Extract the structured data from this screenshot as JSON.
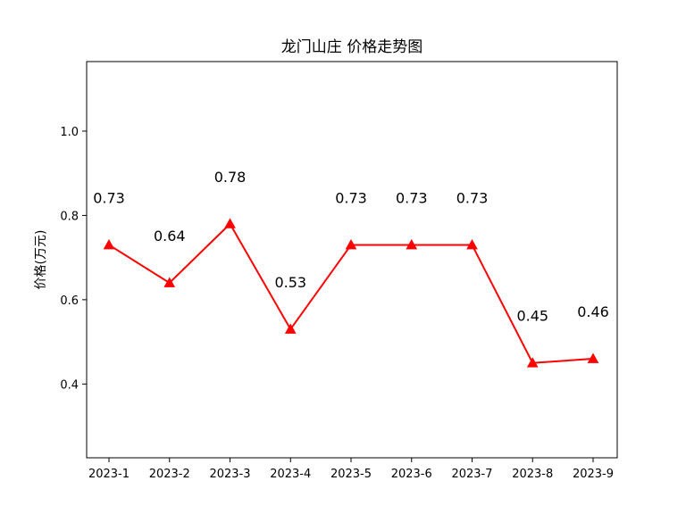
{
  "chart_data": {
    "type": "line",
    "title": "龙门山庄 价格走势图",
    "xlabel": "",
    "ylabel": "价格(万元)",
    "categories": [
      "2023-1",
      "2023-2",
      "2023-3",
      "2023-4",
      "2023-5",
      "2023-6",
      "2023-7",
      "2023-8",
      "2023-9"
    ],
    "values": [
      0.73,
      0.64,
      0.78,
      0.53,
      0.73,
      0.73,
      0.73,
      0.45,
      0.46
    ],
    "data_labels": [
      "0.73",
      "0.64",
      "0.78",
      "0.53",
      "0.73",
      "0.73",
      "0.73",
      "0.45",
      "0.46"
    ],
    "ylim": [
      0.225,
      1.165
    ],
    "yticks": [
      0.4,
      0.6,
      0.8,
      1.0
    ],
    "ytick_labels": [
      "0.4",
      "0.6",
      "0.8",
      "1.0"
    ],
    "grid": false,
    "line_color": "#ff0000",
    "marker": "triangle"
  }
}
